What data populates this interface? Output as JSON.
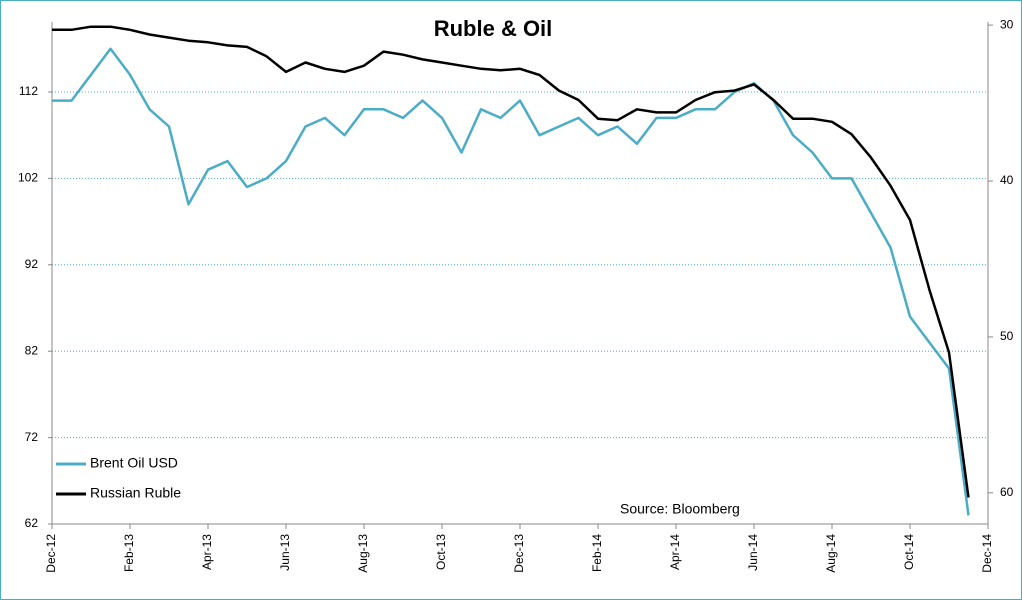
{
  "chart_data": {
    "type": "line",
    "title": "Ruble & Oil",
    "annotation": "Source: Bloomberg",
    "categories": [
      "Dec-12",
      null,
      null,
      null,
      "Feb-13",
      null,
      null,
      null,
      "Apr-13",
      null,
      null,
      null,
      "Jun-13",
      null,
      null,
      null,
      "Aug-13",
      null,
      null,
      null,
      "Oct-13",
      null,
      null,
      null,
      "Dec-13",
      null,
      null,
      null,
      "Feb-14",
      null,
      null,
      null,
      "Apr-14",
      null,
      null,
      null,
      "Jun-14",
      null,
      null,
      null,
      "Aug-14",
      null,
      null,
      null,
      "Oct-14",
      null,
      null,
      null,
      "Dec-14"
    ],
    "series": [
      {
        "name": "Brent Oil USD",
        "color": "#4bacc6",
        "axis": "y",
        "values": [
          111,
          111,
          114,
          117,
          114,
          110,
          108,
          99,
          103,
          104,
          101,
          102,
          104,
          108,
          109,
          107,
          110,
          110,
          109,
          111,
          109,
          105,
          110,
          109,
          111,
          107,
          108,
          109,
          107,
          108,
          106,
          109,
          109,
          110,
          110,
          112,
          113,
          111,
          107,
          105,
          102,
          102,
          98,
          94,
          86,
          83,
          80,
          63,
          null
        ]
      },
      {
        "name": "Russian Ruble",
        "color": "#000000",
        "axis": "y2",
        "values": [
          30.3,
          30.3,
          30.1,
          30.1,
          30.3,
          30.6,
          30.8,
          31,
          31.1,
          31.3,
          31.4,
          32,
          33,
          32.4,
          32.8,
          33,
          32.6,
          31.7,
          31.9,
          32.2,
          32.4,
          32.6,
          32.8,
          32.9,
          32.8,
          33.2,
          34.2,
          34.8,
          36,
          36.1,
          35.4,
          35.6,
          35.6,
          34.8,
          34.3,
          34.2,
          33.8,
          34.8,
          36,
          36,
          36.2,
          37,
          38.5,
          40.3,
          42.5,
          47,
          51,
          60.3,
          null
        ]
      }
    ],
    "ylim": [
      62,
      120.1
    ],
    "yticks": [
      62,
      72,
      82,
      92,
      102,
      112
    ],
    "y2lim": [
      29.8,
      62
    ],
    "y2ticks": [
      30,
      40,
      50,
      60
    ],
    "y2_inverted": true,
    "grid": true,
    "legend": "lower left"
  }
}
